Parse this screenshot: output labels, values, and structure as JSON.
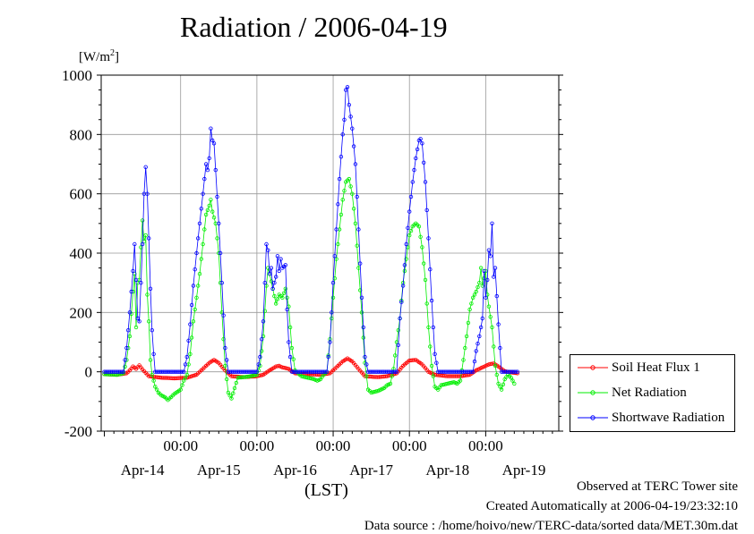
{
  "chart_data": {
    "type": "line",
    "title": "Radiation / 2006-04-19",
    "ylabel_prefix": "[W/m",
    "ylabel_sup": "2",
    "ylabel_suffix": "]",
    "xlabel": "(LST)",
    "ylim": [
      -200,
      1000
    ],
    "yticks": [
      -200,
      0,
      200,
      400,
      600,
      800,
      1000
    ],
    "xlim": [
      -1,
      143
    ],
    "x_unit": "hours from 2006-04-13 00:00 LST",
    "time_ticks": [
      {
        "hour": 24,
        "label": "00:00",
        "date": "Apr-14"
      },
      {
        "hour": 48,
        "label": "00:00",
        "date": "Apr-15"
      },
      {
        "hour": 72,
        "label": "00:00",
        "date": "Apr-16"
      },
      {
        "hour": 96,
        "label": "00:00",
        "date": "Apr-17"
      },
      {
        "hour": 120,
        "label": "00:00",
        "date": "Apr-18"
      },
      {
        "hour": 144,
        "label": "",
        "date": "Apr-19"
      }
    ],
    "grid": true,
    "legend_position": "right",
    "series": [
      {
        "name": "Soil Heat Flux 1",
        "color": "#ff0000",
        "points": [
          [
            0,
            -8
          ],
          [
            4,
            -10
          ],
          [
            7,
            -5
          ],
          [
            8,
            5
          ],
          [
            9,
            18
          ],
          [
            10,
            10
          ],
          [
            11,
            22
          ],
          [
            12,
            8
          ],
          [
            14,
            -15
          ],
          [
            18,
            -20
          ],
          [
            22,
            -22
          ],
          [
            26,
            -20
          ],
          [
            29,
            -10
          ],
          [
            31,
            10
          ],
          [
            33,
            30
          ],
          [
            34.5,
            40
          ],
          [
            36,
            30
          ],
          [
            38,
            5
          ],
          [
            40,
            -15
          ],
          [
            44,
            -18
          ],
          [
            48,
            -15
          ],
          [
            50,
            -10
          ],
          [
            52,
            5
          ],
          [
            54,
            18
          ],
          [
            55,
            20
          ],
          [
            56,
            15
          ],
          [
            58,
            10
          ],
          [
            60,
            -5
          ],
          [
            64,
            -8
          ],
          [
            68,
            -10
          ],
          [
            71,
            -5
          ],
          [
            73,
            15
          ],
          [
            75,
            35
          ],
          [
            76.5,
            45
          ],
          [
            78,
            35
          ],
          [
            80,
            10
          ],
          [
            82,
            -15
          ],
          [
            86,
            -18
          ],
          [
            89,
            -15
          ],
          [
            92,
            -5
          ],
          [
            94,
            20
          ],
          [
            96,
            38
          ],
          [
            98,
            40
          ],
          [
            100,
            25
          ],
          [
            102,
            0
          ],
          [
            104,
            -10
          ],
          [
            108,
            -15
          ],
          [
            112,
            -15
          ],
          [
            115,
            -10
          ],
          [
            117,
            5
          ],
          [
            119,
            15
          ],
          [
            121,
            25
          ],
          [
            122.5,
            28
          ],
          [
            124,
            18
          ],
          [
            126,
            2
          ],
          [
            128,
            -2
          ],
          [
            130,
            -5
          ]
        ]
      },
      {
        "name": "Net Radiation",
        "color": "#00ee00",
        "points": [
          [
            0,
            -8
          ],
          [
            4,
            -10
          ],
          [
            6,
            -5
          ],
          [
            7,
            40
          ],
          [
            8,
            120
          ],
          [
            9,
            270
          ],
          [
            9.5,
            330
          ],
          [
            10,
            150
          ],
          [
            10.5,
            300
          ],
          [
            11,
            310
          ],
          [
            11.5,
            420
          ],
          [
            12,
            510
          ],
          [
            12.5,
            440
          ],
          [
            13,
            460
          ],
          [
            13.5,
            260
          ],
          [
            14,
            170
          ],
          [
            14.5,
            40
          ],
          [
            15,
            -10
          ],
          [
            16,
            -50
          ],
          [
            17,
            -70
          ],
          [
            18,
            -80
          ],
          [
            19,
            -85
          ],
          [
            20,
            -95
          ],
          [
            22,
            -75
          ],
          [
            24,
            -60
          ],
          [
            25,
            -30
          ],
          [
            26,
            -10
          ],
          [
            27,
            60
          ],
          [
            28,
            170
          ],
          [
            29,
            250
          ],
          [
            30,
            330
          ],
          [
            31,
            430
          ],
          [
            32,
            530
          ],
          [
            33,
            560
          ],
          [
            33.5,
            580
          ],
          [
            34,
            540
          ],
          [
            35,
            500
          ],
          [
            36,
            400
          ],
          [
            37,
            200
          ],
          [
            38,
            20
          ],
          [
            39,
            -70
          ],
          [
            40,
            -90
          ],
          [
            41,
            -55
          ],
          [
            42,
            -20
          ],
          [
            44,
            -18
          ],
          [
            46,
            -15
          ],
          [
            48,
            -10
          ],
          [
            49,
            20
          ],
          [
            50,
            120
          ],
          [
            51,
            290
          ],
          [
            51.5,
            350
          ],
          [
            52,
            330
          ],
          [
            53,
            280
          ],
          [
            54,
            230
          ],
          [
            55,
            260
          ],
          [
            56,
            250
          ],
          [
            57,
            280
          ],
          [
            58,
            220
          ],
          [
            59,
            80
          ],
          [
            60,
            5
          ],
          [
            62,
            -15
          ],
          [
            64,
            -20
          ],
          [
            66,
            -25
          ],
          [
            67,
            -30
          ],
          [
            68,
            -25
          ],
          [
            69,
            -10
          ],
          [
            70,
            0
          ],
          [
            71,
            110
          ],
          [
            72,
            250
          ],
          [
            73,
            380
          ],
          [
            74,
            480
          ],
          [
            75,
            580
          ],
          [
            76,
            640
          ],
          [
            77,
            650
          ],
          [
            78,
            600
          ],
          [
            79,
            500
          ],
          [
            80,
            350
          ],
          [
            81,
            200
          ],
          [
            82,
            30
          ],
          [
            83,
            -60
          ],
          [
            84,
            -70
          ],
          [
            86,
            -65
          ],
          [
            88,
            -55
          ],
          [
            89,
            -45
          ],
          [
            90,
            -40
          ],
          [
            91,
            10
          ],
          [
            92,
            100
          ],
          [
            93,
            180
          ],
          [
            94,
            300
          ],
          [
            95,
            380
          ],
          [
            96,
            460
          ],
          [
            97,
            490
          ],
          [
            98,
            500
          ],
          [
            99,
            490
          ],
          [
            100,
            420
          ],
          [
            101,
            310
          ],
          [
            102,
            150
          ],
          [
            103,
            20
          ],
          [
            104,
            -50
          ],
          [
            105,
            -60
          ],
          [
            106,
            -45
          ],
          [
            108,
            -40
          ],
          [
            110,
            -35
          ],
          [
            111,
            -40
          ],
          [
            112,
            -30
          ],
          [
            113,
            40
          ],
          [
            114,
            120
          ],
          [
            115,
            210
          ],
          [
            116,
            250
          ],
          [
            117,
            270
          ],
          [
            118,
            300
          ],
          [
            118.5,
            350
          ],
          [
            119,
            290
          ],
          [
            120,
            340
          ],
          [
            120.5,
            260
          ],
          [
            121,
            220
          ],
          [
            122,
            150
          ],
          [
            123,
            20
          ],
          [
            124,
            -40
          ],
          [
            125,
            -60
          ],
          [
            126,
            -25
          ],
          [
            127,
            -10
          ],
          [
            128,
            -20
          ],
          [
            129,
            -40
          ]
        ]
      },
      {
        "name": "Shortwave Radiation",
        "color": "#0000ff",
        "points": [
          [
            0,
            0
          ],
          [
            6,
            0
          ],
          [
            7,
            80
          ],
          [
            8,
            200
          ],
          [
            9,
            340
          ],
          [
            9.5,
            430
          ],
          [
            10,
            310
          ],
          [
            10.5,
            180
          ],
          [
            11,
            170
          ],
          [
            11.5,
            300
          ],
          [
            12,
            430
          ],
          [
            12.5,
            600
          ],
          [
            13,
            690
          ],
          [
            13.5,
            600
          ],
          [
            14,
            450
          ],
          [
            14.5,
            280
          ],
          [
            15,
            140
          ],
          [
            15.5,
            60
          ],
          [
            16,
            0
          ],
          [
            24,
            0
          ],
          [
            25,
            0
          ],
          [
            26,
            50
          ],
          [
            27,
            160
          ],
          [
            28,
            290
          ],
          [
            29,
            400
          ],
          [
            30,
            500
          ],
          [
            31,
            600
          ],
          [
            32,
            700
          ],
          [
            32.5,
            680
          ],
          [
            33,
            720
          ],
          [
            33.5,
            820
          ],
          [
            34,
            780
          ],
          [
            34.5,
            770
          ],
          [
            35,
            680
          ],
          [
            36,
            500
          ],
          [
            37,
            300
          ],
          [
            38,
            80
          ],
          [
            39,
            0
          ],
          [
            48,
            0
          ],
          [
            49,
            50
          ],
          [
            50,
            170
          ],
          [
            50.5,
            300
          ],
          [
            51,
            430
          ],
          [
            51.5,
            410
          ],
          [
            52,
            330
          ],
          [
            52.5,
            350
          ],
          [
            53,
            280
          ],
          [
            53.5,
            300
          ],
          [
            54,
            320
          ],
          [
            54.5,
            390
          ],
          [
            55,
            340
          ],
          [
            55.5,
            380
          ],
          [
            56,
            350
          ],
          [
            57,
            360
          ],
          [
            57.5,
            210
          ],
          [
            58,
            100
          ],
          [
            59,
            0
          ],
          [
            70,
            0
          ],
          [
            71,
            100
          ],
          [
            72,
            300
          ],
          [
            73,
            480
          ],
          [
            74,
            650
          ],
          [
            75,
            800
          ],
          [
            75.5,
            850
          ],
          [
            76,
            950
          ],
          [
            76.5,
            960
          ],
          [
            77,
            900
          ],
          [
            78,
            820
          ],
          [
            79,
            700
          ],
          [
            80,
            480
          ],
          [
            81,
            250
          ],
          [
            82,
            50
          ],
          [
            83,
            0
          ],
          [
            92,
            0
          ],
          [
            93,
            180
          ],
          [
            94,
            290
          ],
          [
            95,
            430
          ],
          [
            96,
            540
          ],
          [
            97,
            640
          ],
          [
            98,
            720
          ],
          [
            99,
            780
          ],
          [
            99.5,
            785
          ],
          [
            100,
            770
          ],
          [
            101,
            640
          ],
          [
            102,
            450
          ],
          [
            103,
            240
          ],
          [
            104,
            60
          ],
          [
            105,
            0
          ],
          [
            116,
            0
          ],
          [
            117,
            70
          ],
          [
            118,
            120
          ],
          [
            119,
            180
          ],
          [
            119.5,
            340
          ],
          [
            120,
            250
          ],
          [
            120.5,
            310
          ],
          [
            121,
            410
          ],
          [
            121.5,
            390
          ],
          [
            122,
            500
          ],
          [
            122.5,
            320
          ],
          [
            123,
            350
          ],
          [
            124,
            160
          ],
          [
            125,
            0
          ],
          [
            130,
            0
          ]
        ]
      }
    ]
  },
  "footer": {
    "observed": "Observed at TERC Tower site",
    "created": "Created Automatically at 2006-04-19/23:32:10",
    "source": "Data source : /home/hoivo/new/TERC-data/sorted  data/MET.30m.dat"
  }
}
